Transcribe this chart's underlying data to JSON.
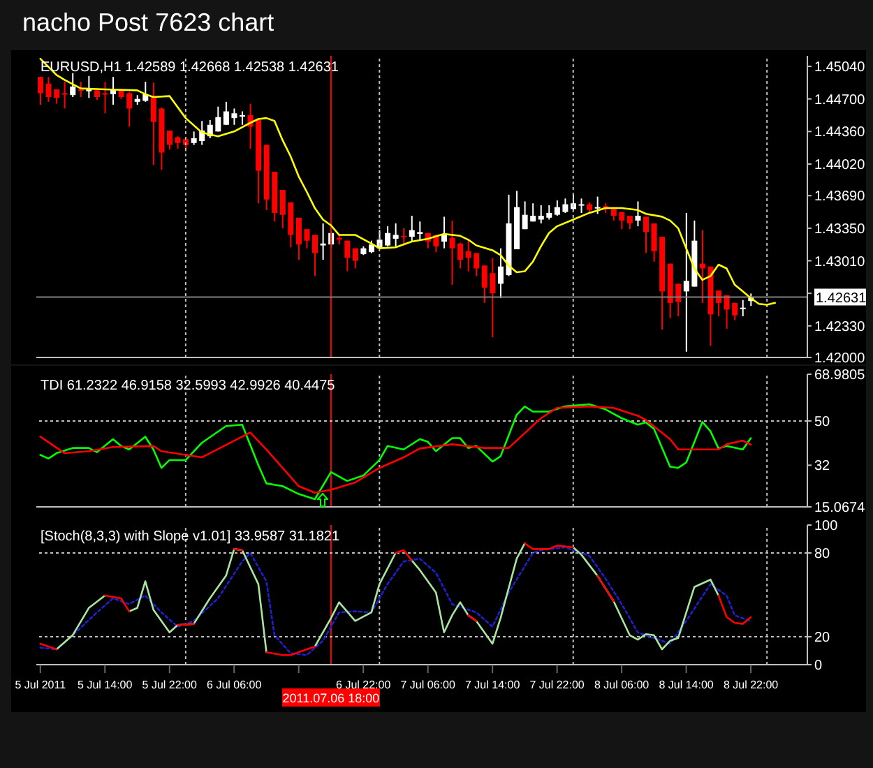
{
  "chart_data": [
    {
      "type": "candlestick",
      "title": "nacho Post 7623 chart",
      "annotations": [
        "EURUSD,H1 1.42589 1.42668 1.42538 1.42631"
      ],
      "x": [
        "2011-07-05T06:00",
        "2011-07-05T07:00",
        "2011-07-05T08:00",
        "2011-07-05T09:00",
        "2011-07-05T10:00",
        "2011-07-05T11:00",
        "2011-07-05T12:00",
        "2011-07-05T13:00",
        "2011-07-05T14:00",
        "2011-07-05T15:00",
        "2011-07-05T16:00",
        "2011-07-05T17:00",
        "2011-07-05T18:00",
        "2011-07-05T19:00",
        "2011-07-05T20:00",
        "2011-07-05T21:00",
        "2011-07-05T22:00",
        "2011-07-05T23:00",
        "2011-07-06T00:00",
        "2011-07-06T01:00",
        "2011-07-06T02:00",
        "2011-07-06T03:00",
        "2011-07-06T04:00",
        "2011-07-06T05:00",
        "2011-07-06T06:00",
        "2011-07-06T07:00",
        "2011-07-06T08:00",
        "2011-07-06T09:00",
        "2011-07-06T10:00",
        "2011-07-06T11:00",
        "2011-07-06T12:00",
        "2011-07-06T13:00",
        "2011-07-06T14:00",
        "2011-07-06T15:00",
        "2011-07-06T16:00",
        "2011-07-06T17:00",
        "2011-07-06T18:00",
        "2011-07-06T19:00",
        "2011-07-06T20:00",
        "2011-07-06T21:00",
        "2011-07-06T22:00",
        "2011-07-06T23:00",
        "2011-07-07T00:00",
        "2011-07-07T01:00",
        "2011-07-07T02:00",
        "2011-07-07T03:00",
        "2011-07-07T04:00",
        "2011-07-07T05:00",
        "2011-07-07T06:00",
        "2011-07-07T07:00",
        "2011-07-07T08:00",
        "2011-07-07T09:00",
        "2011-07-07T10:00",
        "2011-07-07T11:00",
        "2011-07-07T12:00",
        "2011-07-07T13:00",
        "2011-07-07T14:00",
        "2011-07-07T15:00",
        "2011-07-07T16:00",
        "2011-07-07T17:00",
        "2011-07-07T18:00",
        "2011-07-07T19:00",
        "2011-07-07T20:00",
        "2011-07-07T21:00",
        "2011-07-07T22:00",
        "2011-07-07T23:00",
        "2011-07-08T00:00",
        "2011-07-08T01:00",
        "2011-07-08T02:00",
        "2011-07-08T03:00",
        "2011-07-08T04:00",
        "2011-07-08T05:00",
        "2011-07-08T06:00",
        "2011-07-08T07:00",
        "2011-07-08T08:00",
        "2011-07-08T09:00",
        "2011-07-08T10:00",
        "2011-07-08T11:00",
        "2011-07-08T12:00",
        "2011-07-08T13:00",
        "2011-07-08T14:00",
        "2011-07-08T15:00",
        "2011-07-08T16:00",
        "2011-07-08T17:00",
        "2011-07-08T18:00",
        "2011-07-08T19:00",
        "2011-07-08T20:00",
        "2011-07-08T21:00",
        "2011-07-08T22:00"
      ],
      "ohlc": [
        [
          1.4493,
          1.4493,
          1.4464,
          1.4476
        ],
        [
          1.4486,
          1.4493,
          1.4467,
          1.4472
        ],
        [
          1.448,
          1.448,
          1.4465,
          1.4471
        ],
        [
          1.4476,
          1.4488,
          1.446,
          1.4475
        ],
        [
          1.4474,
          1.4497,
          1.4472,
          1.4483
        ],
        [
          1.448,
          1.4488,
          1.4472,
          1.4479
        ],
        [
          1.4478,
          1.4494,
          1.4471,
          1.448
        ],
        [
          1.4479,
          1.4479,
          1.4469,
          1.4472
        ],
        [
          1.4476,
          1.4488,
          1.4455,
          1.4475
        ],
        [
          1.4475,
          1.4493,
          1.4464,
          1.448
        ],
        [
          1.4479,
          1.4479,
          1.447,
          1.4472
        ],
        [
          1.4476,
          1.4477,
          1.4441,
          1.446
        ],
        [
          1.4467,
          1.4474,
          1.4464,
          1.447
        ],
        [
          1.4468,
          1.4488,
          1.4467,
          1.4475
        ],
        [
          1.4473,
          1.4487,
          1.4401,
          1.4446
        ],
        [
          1.446,
          1.4461,
          1.4396,
          1.4414
        ],
        [
          1.4437,
          1.4437,
          1.4417,
          1.4422
        ],
        [
          1.443,
          1.4431,
          1.4418,
          1.4424
        ],
        [
          1.4428,
          1.4428,
          1.4415,
          1.4422
        ],
        [
          1.4424,
          1.4436,
          1.4422,
          1.4429
        ],
        [
          1.4426,
          1.4447,
          1.4422,
          1.4437
        ],
        [
          1.4431,
          1.4448,
          1.4429,
          1.4443
        ],
        [
          1.4436,
          1.4462,
          1.4436,
          1.4451
        ],
        [
          1.4443,
          1.4467,
          1.4443,
          1.4457
        ],
        [
          1.445,
          1.446,
          1.4443,
          1.4455
        ],
        [
          1.4452,
          1.4457,
          1.4443,
          1.4453
        ],
        [
          1.4453,
          1.4465,
          1.4418,
          1.4441
        ],
        [
          1.4448,
          1.4448,
          1.4361,
          1.4395
        ],
        [
          1.4422,
          1.4422,
          1.4354,
          1.4365
        ],
        [
          1.4394,
          1.4394,
          1.4342,
          1.4351
        ],
        [
          1.4375,
          1.4375,
          1.4335,
          1.4349
        ],
        [
          1.4362,
          1.4362,
          1.4315,
          1.4328
        ],
        [
          1.4346,
          1.4346,
          1.4302,
          1.4318
        ],
        [
          1.4334,
          1.4334,
          1.4314,
          1.4322
        ],
        [
          1.4328,
          1.4328,
          1.4285,
          1.4309
        ],
        [
          1.4317,
          1.434,
          1.4302,
          1.4319
        ],
        [
          1.4318,
          1.4332,
          1.4314,
          1.433
        ],
        [
          1.4325,
          1.4328,
          1.4318,
          1.4323
        ],
        [
          1.4322,
          1.4322,
          1.429,
          1.4304
        ],
        [
          1.4314,
          1.4314,
          1.4293,
          1.4301
        ],
        [
          1.4308,
          1.4316,
          1.4307,
          1.4314
        ],
        [
          1.431,
          1.4322,
          1.4309,
          1.4318
        ],
        [
          1.4314,
          1.4333,
          1.4314,
          1.4323
        ],
        [
          1.4317,
          1.4337,
          1.4316,
          1.433
        ],
        [
          1.4324,
          1.434,
          1.4316,
          1.4328
        ],
        [
          1.4327,
          1.4335,
          1.4318,
          1.4326
        ],
        [
          1.4326,
          1.4348,
          1.4321,
          1.4333
        ],
        [
          1.4329,
          1.4342,
          1.4323,
          1.4331
        ],
        [
          1.433,
          1.433,
          1.4314,
          1.4321
        ],
        [
          1.4328,
          1.4328,
          1.431,
          1.4316
        ],
        [
          1.4321,
          1.4347,
          1.4314,
          1.4329
        ],
        [
          1.4325,
          1.4343,
          1.4276,
          1.4314
        ],
        [
          1.4319,
          1.432,
          1.4293,
          1.4302
        ],
        [
          1.4311,
          1.4323,
          1.429,
          1.4304
        ],
        [
          1.4309,
          1.4309,
          1.4285,
          1.4293
        ],
        [
          1.4296,
          1.4296,
          1.4257,
          1.4273
        ],
        [
          1.4288,
          1.4304,
          1.4221,
          1.4267
        ],
        [
          1.4277,
          1.4314,
          1.4262,
          1.4295
        ],
        [
          1.4286,
          1.437,
          1.4285,
          1.434
        ],
        [
          1.4313,
          1.4374,
          1.4313,
          1.4357
        ],
        [
          1.4334,
          1.4363,
          1.4334,
          1.4349
        ],
        [
          1.4342,
          1.4361,
          1.4342,
          1.4348
        ],
        [
          1.4344,
          1.4359,
          1.434,
          1.4348
        ],
        [
          1.4346,
          1.4359,
          1.4344,
          1.4351
        ],
        [
          1.4349,
          1.4364,
          1.4348,
          1.4357
        ],
        [
          1.4352,
          1.4366,
          1.4351,
          1.436
        ],
        [
          1.4355,
          1.437,
          1.4354,
          1.4361
        ],
        [
          1.4359,
          1.4366,
          1.4351,
          1.436
        ],
        [
          1.436,
          1.4362,
          1.4351,
          1.4354
        ],
        [
          1.4356,
          1.4368,
          1.435,
          1.4357
        ],
        [
          1.4358,
          1.4361,
          1.4351,
          1.4355
        ],
        [
          1.4355,
          1.4355,
          1.4343,
          1.4348
        ],
        [
          1.4352,
          1.4352,
          1.4334,
          1.4343
        ],
        [
          1.4348,
          1.4348,
          1.4334,
          1.434
        ],
        [
          1.4343,
          1.4363,
          1.4337,
          1.4348
        ],
        [
          1.4347,
          1.4347,
          1.4309,
          1.4331
        ],
        [
          1.434,
          1.434,
          1.43,
          1.4311
        ],
        [
          1.4326,
          1.4326,
          1.4229,
          1.4269
        ],
        [
          1.4298,
          1.4298,
          1.4241,
          1.4257
        ],
        [
          1.4277,
          1.4277,
          1.4243,
          1.4258
        ],
        [
          1.4269,
          1.4351,
          1.4206,
          1.428
        ],
        [
          1.4274,
          1.4343,
          1.4274,
          1.4322
        ],
        [
          1.4298,
          1.4333,
          1.4257,
          1.4293
        ],
        [
          1.4295,
          1.4295,
          1.4212,
          1.4245
        ],
        [
          1.427,
          1.427,
          1.4243,
          1.4257
        ],
        [
          1.4265,
          1.4265,
          1.423,
          1.425
        ],
        [
          1.4257,
          1.4257,
          1.4239,
          1.4244
        ],
        [
          1.4251,
          1.426,
          1.4243,
          1.4252
        ],
        [
          1.42589,
          1.42668,
          1.42538,
          1.42631
        ]
      ],
      "colors": [
        "#ff0000",
        "#ff0000",
        "#ff0000",
        "#ff0000",
        "#ffffff",
        "#ff0000",
        "#ffffff",
        "#ff0000",
        "#ff0000",
        "#ffffff",
        "#ff0000",
        "#ff0000",
        "#ffffff",
        "#ffffff",
        "#ff0000",
        "#ff0000",
        "#ff0000",
        "#ff0000",
        "#ff0000",
        "#ffffff",
        "#ffffff",
        "#ffffff",
        "#ffffff",
        "#ffffff",
        "#ffffff",
        "#ffffff",
        "#ff0000",
        "#ff0000",
        "#ff0000",
        "#ff0000",
        "#ff0000",
        "#ff0000",
        "#ff0000",
        "#ff0000",
        "#ff0000",
        "#ffffff",
        "#ffffff",
        "#ff0000",
        "#ff0000",
        "#ff0000",
        "#ffffff",
        "#ffffff",
        "#ffffff",
        "#ffffff",
        "#ffffff",
        "#ff0000",
        "#ffffff",
        "#ffffff",
        "#ff0000",
        "#ff0000",
        "#ffffff",
        "#ff0000",
        "#ff0000",
        "#ff0000",
        "#ff0000",
        "#ff0000",
        "#ff0000",
        "#ffffff",
        "#ffffff",
        "#ffffff",
        "#ffffff",
        "#ffffff",
        "#ffffff",
        "#ffffff",
        "#ffffff",
        "#ffffff",
        "#ffffff",
        "#ffffff",
        "#ff0000",
        "#ffffff",
        "#ff0000",
        "#ff0000",
        "#ff0000",
        "#ff0000",
        "#ffffff",
        "#ff0000",
        "#ff0000",
        "#ff0000",
        "#ff0000",
        "#ff0000",
        "#ffffff",
        "#ffffff",
        "#ff0000",
        "#ff0000",
        "#ff0000",
        "#ff0000",
        "#ff0000",
        "#ffffff",
        "#ffffff"
      ],
      "series": [
        {
          "type": "line",
          "color": "#ffff00",
          "x": [
            "2011-07-05T06:00",
            "2011-07-05T08:00",
            "2011-07-05T09:00",
            "2011-07-05T11:00",
            "2011-07-05T14:00",
            "2011-07-05T18:00",
            "2011-07-05T19:00",
            "2011-07-05T20:00",
            "2011-07-05T22:00",
            "2011-07-06T00:00",
            "2011-07-06T02:00",
            "2011-07-06T04:00",
            "2011-07-06T06:00",
            "2011-07-06T08:00",
            "2011-07-06T09:00",
            "2011-07-06T10:00",
            "2011-07-06T11:00",
            "2011-07-06T12:00",
            "2011-07-06T13:00",
            "2011-07-06T14:00",
            "2011-07-06T15:00",
            "2011-07-06T16:00",
            "2011-07-06T17:00",
            "2011-07-06T18:00",
            "2011-07-06T19:00",
            "2011-07-06T21:00",
            "2011-07-06T23:00",
            "2011-07-07T00:00",
            "2011-07-07T02:00",
            "2011-07-07T04:00",
            "2011-07-07T06:00",
            "2011-07-07T08:00",
            "2011-07-07T10:00",
            "2011-07-07T11:00",
            "2011-07-07T12:00",
            "2011-07-07T14:00",
            "2011-07-07T15:00",
            "2011-07-07T16:00",
            "2011-07-07T17:00",
            "2011-07-07T18:00",
            "2011-07-07T19:00",
            "2011-07-07T20:00",
            "2011-07-07T21:00",
            "2011-07-07T22:00",
            "2011-07-08T00:00",
            "2011-07-08T02:00",
            "2011-07-08T04:00",
            "2011-07-08T06:00",
            "2011-07-08T08:00",
            "2011-07-08T09:00",
            "2011-07-08T11:00",
            "2011-07-08T12:00",
            "2011-07-08T13:00",
            "2011-07-08T14:00",
            "2011-07-08T15:00",
            "2011-07-08T16:00",
            "2011-07-08T17:00",
            "2011-07-08T18:00",
            "2011-07-08T19:00",
            "2011-07-08T20:00",
            "2011-07-08T21:00",
            "2011-07-08T22:00",
            "2011-07-08T23:00",
            "2011-07-09T00:00",
            "2011-07-09T01:00"
          ],
          "values": [
            1.4512,
            1.4495,
            1.449,
            1.4481,
            1.448,
            1.4479,
            1.4475,
            1.4472,
            1.4473,
            1.445,
            1.4435,
            1.4431,
            1.4436,
            1.4445,
            1.4449,
            1.445,
            1.4447,
            1.4427,
            1.441,
            1.4389,
            1.4373,
            1.4356,
            1.4344,
            1.4338,
            1.4328,
            1.4328,
            1.4319,
            1.4314,
            1.4315,
            1.4321,
            1.4324,
            1.4329,
            1.4327,
            1.4323,
            1.4317,
            1.4312,
            1.4307,
            1.4296,
            1.4289,
            1.429,
            1.43,
            1.4316,
            1.433,
            1.4337,
            1.4344,
            1.4351,
            1.4356,
            1.4356,
            1.4354,
            1.435,
            1.4347,
            1.4343,
            1.4335,
            1.4314,
            1.4293,
            1.4281,
            1.4285,
            1.4297,
            1.4293,
            1.4276,
            1.4269,
            1.4262,
            1.4256,
            1.4255,
            1.4257
          ]
        }
      ],
      "xlim": [
        "2011-07-05T05:30",
        "2011-07-09T05:00"
      ],
      "ylim": [
        1.42,
        1.4515
      ],
      "yticks": [
        {
          "value": 1.4504,
          "label": "1.45040"
        },
        {
          "value": 1.447,
          "label": "1.44700"
        },
        {
          "value": 1.4436,
          "label": "1.44360"
        },
        {
          "value": 1.4402,
          "label": "1.44020"
        },
        {
          "value": 1.4369,
          "label": "1.43690"
        },
        {
          "value": 1.4335,
          "label": "1.43350"
        },
        {
          "value": 1.4301,
          "label": "1.43010"
        },
        {
          "value": 1.4267,
          "label": null
        },
        {
          "value": 1.4233,
          "label": "1.42330"
        },
        {
          "value": 1.42,
          "label": "1.42000"
        }
      ],
      "tick_labels": "y",
      "ref_lines": [
        {
          "axis": "x",
          "value": "2011-07-06T00:00",
          "color": "#c0c0c0",
          "line_style": "dotted"
        },
        {
          "axis": "x",
          "value": "2011-07-07T00:00",
          "color": "#c0c0c0",
          "line_style": "dotted"
        },
        {
          "axis": "x",
          "value": "2011-07-08T00:00",
          "color": "#c0c0c0",
          "line_style": "dotted"
        },
        {
          "axis": "x",
          "value": "2011-07-09T00:00",
          "color": "#c0c0c0",
          "line_style": "dotted"
        },
        {
          "axis": "x",
          "value": "2011-07-06T18:00",
          "color": "#ff0000"
        },
        {
          "axis": "y",
          "value": 1.42631,
          "label": "1.42631",
          "color": "#808080"
        }
      ]
    },
    {
      "type": "line",
      "annotations": [
        "TDI 61.2322 46.9158 32.5993 42.9926 40.4475"
      ],
      "series": [
        {
          "color": "#00ff00",
          "x": [
            "2011-07-05T06:00",
            "2011-07-05T07:00",
            "2011-07-05T08:00",
            "2011-07-05T10:00",
            "2011-07-05T12:00",
            "2011-07-05T13:00",
            "2011-07-05T15:00",
            "2011-07-05T16:00",
            "2011-07-05T17:00",
            "2011-07-05T19:00",
            "2011-07-05T20:00",
            "2011-07-05T21:00",
            "2011-07-05T22:00",
            "2011-07-06T00:00",
            "2011-07-06T02:00",
            "2011-07-06T05:00",
            "2011-07-06T07:00",
            "2011-07-06T09:00",
            "2011-07-06T10:00",
            "2011-07-06T12:00",
            "2011-07-06T14:00",
            "2011-07-06T16:00",
            "2011-07-06T18:00",
            "2011-07-06T20:00",
            "2011-07-06T22:00",
            "2011-07-07T00:00",
            "2011-07-07T01:00",
            "2011-07-07T03:00",
            "2011-07-07T05:00",
            "2011-07-07T06:00",
            "2011-07-07T07:00",
            "2011-07-07T09:00",
            "2011-07-07T10:00",
            "2011-07-07T11:00",
            "2011-07-07T12:00",
            "2011-07-07T14:00",
            "2011-07-07T15:00",
            "2011-07-07T17:00",
            "2011-07-07T18:00",
            "2011-07-07T19:00",
            "2011-07-07T21:00",
            "2011-07-07T23:00",
            "2011-07-08T02:00",
            "2011-07-08T04:00",
            "2011-07-08T06:00",
            "2011-07-08T08:00",
            "2011-07-08T09:00",
            "2011-07-08T10:00",
            "2011-07-08T12:00",
            "2011-07-08T13:00",
            "2011-07-08T14:00",
            "2011-07-08T16:00",
            "2011-07-08T17:00",
            "2011-07-08T18:00",
            "2011-07-08T19:00",
            "2011-07-08T21:00",
            "2011-07-08T22:00"
          ],
          "values": [
            36.2,
            34.7,
            36.9,
            39.0,
            39.0,
            37.3,
            42.6,
            39.8,
            38.4,
            43.6,
            38.4,
            30.9,
            34.1,
            34.1,
            41.1,
            47.9,
            48.5,
            32.0,
            24.6,
            23.5,
            20.3,
            18.2,
            29.2,
            25.6,
            27.8,
            34.1,
            39.8,
            38.4,
            42.6,
            41.5,
            37.7,
            43.0,
            43.0,
            39.0,
            39.8,
            33.5,
            35.6,
            52.5,
            55.9,
            53.8,
            53.8,
            55.9,
            56.8,
            54.7,
            51.1,
            48.5,
            49.4,
            46.8,
            31.4,
            30.9,
            33.1,
            49.6,
            45.8,
            38.8,
            39.8,
            38.4,
            43.0
          ]
        },
        {
          "color": "#ff0000",
          "x": [
            "2011-07-05T06:00",
            "2011-07-05T09:00",
            "2011-07-05T12:00",
            "2011-07-05T15:00",
            "2011-07-05T20:00",
            "2011-07-05T21:00",
            "2011-07-06T02:00",
            "2011-07-06T08:00",
            "2011-07-06T10:00",
            "2011-07-06T14:00",
            "2011-07-06T16:00",
            "2011-07-06T18:00",
            "2011-07-06T21:00",
            "2011-07-07T00:00",
            "2011-07-07T03:00",
            "2011-07-07T05:00",
            "2011-07-07T09:00",
            "2011-07-07T13:00",
            "2011-07-07T16:00",
            "2011-07-07T20:00",
            "2011-07-07T22:00",
            "2011-07-08T02:00",
            "2011-07-08T05:00",
            "2011-07-08T08:00",
            "2011-07-08T09:00",
            "2011-07-08T12:00",
            "2011-07-08T13:00",
            "2011-07-08T18:00",
            "2011-07-08T19:00",
            "2011-07-08T21:00",
            "2011-07-08T22:00"
          ],
          "values": [
            43.6,
            36.9,
            37.7,
            39.4,
            39.8,
            37.7,
            35.2,
            45.3,
            38.4,
            23.5,
            20.8,
            22.0,
            25.0,
            30.9,
            35.2,
            38.8,
            40.5,
            39.0,
            39.0,
            51.1,
            55.3,
            55.9,
            55.3,
            52.1,
            50.4,
            42.6,
            38.4,
            38.4,
            40.5,
            42.0,
            40.4
          ]
        }
      ],
      "xlim": [
        "2011-07-05T05:30",
        "2011-07-09T05:00"
      ],
      "ylim": [
        15.0674,
        68.9805
      ],
      "yticks": [
        68.9805,
        50,
        32,
        15.0674
      ],
      "tick_labels": "y",
      "ref_lines": [
        {
          "axis": "x",
          "value": "2011-07-06T00:00",
          "color": "#c0c0c0",
          "line_style": "dotted"
        },
        {
          "axis": "x",
          "value": "2011-07-07T00:00",
          "color": "#c0c0c0",
          "line_style": "dotted"
        },
        {
          "axis": "x",
          "value": "2011-07-08T00:00",
          "color": "#c0c0c0",
          "line_style": "dotted"
        },
        {
          "axis": "x",
          "value": "2011-07-09T00:00",
          "color": "#c0c0c0",
          "line_style": "dotted"
        },
        {
          "axis": "x",
          "value": "2011-07-06T18:00",
          "color": "#ff0000"
        },
        {
          "axis": "y",
          "value": 50,
          "color": "#c0c0c0",
          "line_style": "dotted"
        }
      ]
    },
    {
      "type": "line",
      "annotations": [
        "[Stoch(8,3,3) with Slope v1.01] 33.9587 31.1821"
      ],
      "series": [
        {
          "color": "#a8e6a0",
          "x": [
            "2011-07-05T08:00",
            "2011-07-05T10:00",
            "2011-07-05T12:00",
            "2011-07-05T14:00",
            "2011-07-05T16:00",
            "2011-07-05T17:00",
            "2011-07-05T18:00",
            "2011-07-05T19:00",
            "2011-07-05T20:00",
            "2011-07-05T22:00",
            "2011-07-05T23:00",
            "2011-07-06T01:00",
            "2011-07-06T03:00",
            "2011-07-06T05:00",
            "2011-07-06T06:00",
            "2011-07-06T07:00",
            "2011-07-06T09:00",
            "2011-07-06T10:00",
            "2011-07-06T12:00",
            "2011-07-06T13:00",
            "2011-07-06T16:00",
            "2011-07-06T18:00",
            "2011-07-06T19:00",
            "2011-07-06T21:00",
            "2011-07-06T23:00",
            "2011-07-07T00:00",
            "2011-07-07T02:00",
            "2011-07-07T03:00",
            "2011-07-07T04:00",
            "2011-07-07T05:00",
            "2011-07-07T07:00",
            "2011-07-07T08:00",
            "2011-07-07T09:00",
            "2011-07-07T10:00",
            "2011-07-07T11:00",
            "2011-07-07T12:00",
            "2011-07-07T14:00",
            "2011-07-07T15:00",
            "2011-07-07T17:00",
            "2011-07-07T18:00",
            "2011-07-07T19:00",
            "2011-07-07T21:00",
            "2011-07-07T22:00",
            "2011-07-08T00:00",
            "2011-07-08T01:00",
            "2011-07-08T03:00",
            "2011-07-08T05:00",
            "2011-07-08T07:00",
            "2011-07-08T08:00",
            "2011-07-08T09:00",
            "2011-07-08T10:00",
            "2011-07-08T11:00",
            "2011-07-08T12:00",
            "2011-07-08T13:00",
            "2011-07-08T15:00",
            "2011-07-08T17:00",
            "2011-07-08T18:00"
          ],
          "values": [
            11.0,
            21.1,
            40.6,
            49.5,
            null,
            38.2,
            40.6,
            59.7,
            39.4,
            23.1,
            28.4,
            29.2,
            47.5,
            63.7,
            82.8,
            82.0,
            57.7,
            8.9,
            null,
            null,
            13.0,
            33.3,
            44.7,
            31.3,
            37.4,
            57.7,
            80.0,
            null,
            74.7,
            67.8,
            51.6,
            23.1,
            35.3,
            44.7,
            35.3,
            31.3,
            15.0,
            33.3,
            75.9,
            86.9,
            null,
            null,
            null,
            84.0,
            78.8,
            63.7,
            45.5,
            21.1,
            17.9,
            21.9,
            21.1,
            11.0,
            17.1,
            19.1,
            55.6,
            60.9,
            49.5
          ]
        },
        {
          "color": "#ff0000",
          "x": [
            "2011-07-05T06:00",
            "2011-07-05T08:00",
            "2011-07-05T10:00",
            "2011-07-05T12:00",
            "2011-07-05T14:00",
            "2011-07-05T16:00",
            "2011-07-05T17:00",
            "2011-07-05T18:00",
            "2011-07-05T19:00",
            "2011-07-05T20:00",
            "2011-07-05T22:00",
            "2011-07-05T23:00",
            "2011-07-06T01:00",
            "2011-07-06T03:00",
            "2011-07-06T05:00",
            "2011-07-06T06:00",
            "2011-07-06T07:00",
            "2011-07-06T09:00",
            "2011-07-06T10:00",
            "2011-07-06T12:00",
            "2011-07-06T13:00",
            "2011-07-06T16:00",
            "2011-07-06T18:00",
            "2011-07-06T19:00",
            "2011-07-06T21:00",
            "2011-07-06T23:00",
            "2011-07-07T00:00",
            "2011-07-07T02:00",
            "2011-07-07T03:00",
            "2011-07-07T04:00",
            "2011-07-07T05:00",
            "2011-07-07T07:00",
            "2011-07-07T08:00",
            "2011-07-07T09:00",
            "2011-07-07T10:00",
            "2011-07-07T11:00",
            "2011-07-07T12:00",
            "2011-07-07T14:00",
            "2011-07-07T15:00",
            "2011-07-07T17:00",
            "2011-07-07T18:00",
            "2011-07-07T19:00",
            "2011-07-07T21:00",
            "2011-07-07T22:00",
            "2011-07-08T00:00",
            "2011-07-08T01:00",
            "2011-07-08T03:00",
            "2011-07-08T05:00",
            "2011-07-08T07:00",
            "2011-07-08T08:00",
            "2011-07-08T09:00",
            "2011-07-08T10:00",
            "2011-07-08T11:00",
            "2011-07-08T12:00",
            "2011-07-08T13:00",
            "2011-07-08T15:00",
            "2011-07-08T17:00",
            "2011-07-08T18:00",
            "2011-07-08T19:00",
            "2011-07-08T20:00",
            "2011-07-08T21:00",
            "2011-07-08T22:00"
          ],
          "values": [
            15.0,
            11.0,
            null,
            null,
            49.5,
            47.5,
            38.2,
            null,
            null,
            null,
            null,
            28.4,
            29.2,
            null,
            null,
            82.8,
            82.0,
            null,
            8.9,
            6.9,
            6.9,
            13.0,
            null,
            null,
            null,
            null,
            null,
            80.0,
            82.0,
            74.7,
            null,
            null,
            null,
            null,
            null,
            35.3,
            31.3,
            null,
            null,
            null,
            86.9,
            82.8,
            82.8,
            85.3,
            84.0,
            null,
            63.7,
            45.5,
            null,
            null,
            null,
            null,
            null,
            null,
            null,
            null,
            null,
            49.5,
            34.1,
            30.0,
            29.2,
            34.0
          ]
        },
        {
          "color": "#2020d0",
          "line_style": "dotted",
          "x": [
            "2011-07-05T06:00",
            "2011-07-05T08:00",
            "2011-07-05T10:00",
            "2011-07-05T13:00",
            "2011-07-05T15:00",
            "2011-07-05T17:00",
            "2011-07-05T19:00",
            "2011-07-05T21:00",
            "2011-07-05T23:00",
            "2011-07-06T01:00",
            "2011-07-06T04:00",
            "2011-07-06T07:00",
            "2011-07-06T08:00",
            "2011-07-06T10:00",
            "2011-07-06T11:00",
            "2011-07-06T13:00",
            "2011-07-06T15:00",
            "2011-07-06T17:00",
            "2011-07-06T19:00",
            "2011-07-06T21:00",
            "2011-07-06T23:00",
            "2011-07-07T01:00",
            "2011-07-07T03:00",
            "2011-07-07T05:00",
            "2011-07-07T07:00",
            "2011-07-07T09:00",
            "2011-07-07T10:00",
            "2011-07-07T12:00",
            "2011-07-07T14:00",
            "2011-07-07T16:00",
            "2011-07-07T19:00",
            "2011-07-07T20:00",
            "2011-07-07T23:00",
            "2011-07-08T02:00",
            "2011-07-08T04:00",
            "2011-07-08T06:00",
            "2011-07-08T08:00",
            "2011-07-08T10:00",
            "2011-07-08T12:00",
            "2011-07-08T14:00",
            "2011-07-08T17:00",
            "2011-07-08T19:00",
            "2011-07-08T20:00",
            "2011-07-08T22:00"
          ],
          "values": [
            12.2,
            11.0,
            21.1,
            37.4,
            47.5,
            43.4,
            49.5,
            37.4,
            27.2,
            31.3,
            47.5,
            73.9,
            80.0,
            59.7,
            21.1,
            8.1,
            6.9,
            17.1,
            37.4,
            38.2,
            37.4,
            57.7,
            73.9,
            75.9,
            65.8,
            43.4,
            41.4,
            37.4,
            27.2,
            51.6,
            80.0,
            82.0,
            84.0,
            78.0,
            61.7,
            43.4,
            23.1,
            19.1,
            15.0,
            31.3,
            57.7,
            49.5,
            35.3,
            31.2
          ]
        }
      ],
      "xlim": [
        "2011-07-05T05:30",
        "2011-07-09T05:00"
      ],
      "xticks": [
        {
          "value": "2011-07-05T06:00",
          "label": "5 Jul 2011"
        },
        {
          "value": "2011-07-05T14:00",
          "label": "5 Jul 14:00"
        },
        {
          "value": "2011-07-05T22:00",
          "label": "5 Jul 22:00"
        },
        {
          "value": "2011-07-06T06:00",
          "label": "6 Jul 06:00"
        },
        {
          "value": "2011-07-06T14:00",
          "label": null
        },
        {
          "value": "2011-07-06T22:00",
          "label": "6 Jul 22:00"
        },
        {
          "value": "2011-07-07T06:00",
          "label": "7 Jul 06:00"
        },
        {
          "value": "2011-07-07T14:00",
          "label": "7 Jul 14:00"
        },
        {
          "value": "2011-07-07T22:00",
          "label": "7 Jul 22:00"
        },
        {
          "value": "2011-07-08T06:00",
          "label": "8 Jul 06:00"
        },
        {
          "value": "2011-07-08T14:00",
          "label": "8 Jul 14:00"
        },
        {
          "value": "2011-07-08T22:00",
          "label": "8 Jul 22:00"
        }
      ],
      "ylim": [
        0,
        100
      ],
      "yticks": [
        100,
        80,
        20,
        0
      ],
      "ref_lines": [
        {
          "axis": "x",
          "value": "2011-07-06T00:00",
          "color": "#c0c0c0",
          "line_style": "dotted"
        },
        {
          "axis": "x",
          "value": "2011-07-07T00:00",
          "color": "#c0c0c0",
          "line_style": "dotted"
        },
        {
          "axis": "x",
          "value": "2011-07-08T00:00",
          "color": "#c0c0c0",
          "line_style": "dotted"
        },
        {
          "axis": "x",
          "value": "2011-07-09T00:00",
          "color": "#c0c0c0",
          "line_style": "dotted"
        },
        {
          "axis": "x",
          "value": "2011-07-06T18:00",
          "label": "2011.07.06 18:00",
          "color": "#ff0000"
        },
        {
          "axis": "y",
          "value": 80,
          "color": "#c0c0c0",
          "line_style": "dotted"
        },
        {
          "axis": "y",
          "value": 20,
          "color": "#c0c0c0",
          "line_style": "dotted"
        }
      ]
    }
  ]
}
